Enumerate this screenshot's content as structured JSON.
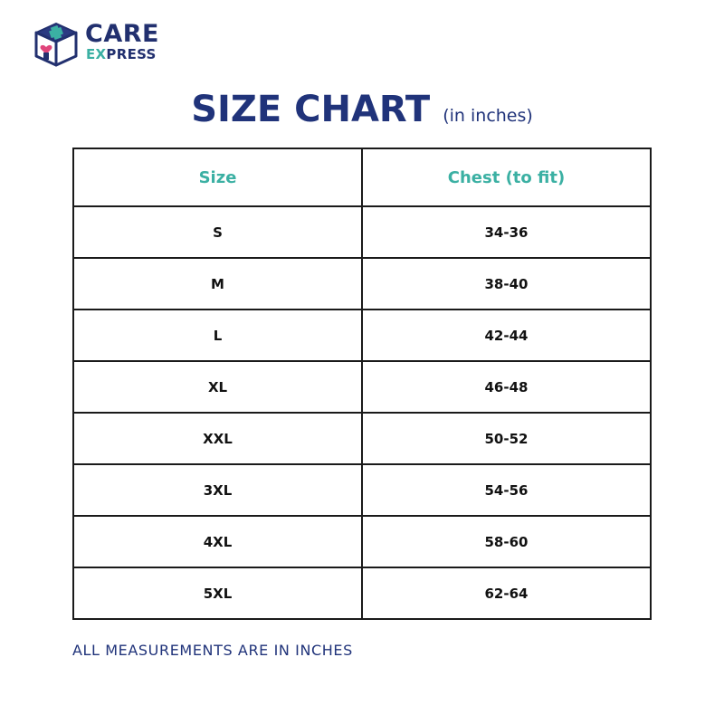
{
  "brand": {
    "name_top": "CARE",
    "name_bottom_accent": "EX",
    "name_bottom_rest": "PRESS",
    "logo_icon": "box-heart-icon",
    "colors": {
      "navy": "#22306f",
      "teal": "#3bb0a3"
    }
  },
  "header": {
    "title": "SIZE CHART",
    "subtitle": "(in inches)"
  },
  "table": {
    "columns": [
      "Size",
      "Chest (to fit)"
    ],
    "rows": [
      {
        "size": "S",
        "chest": "34-36"
      },
      {
        "size": "M",
        "chest": "38-40"
      },
      {
        "size": "L",
        "chest": "42-44"
      },
      {
        "size": "XL",
        "chest": "46-48"
      },
      {
        "size": "XXL",
        "chest": "50-52"
      },
      {
        "size": "3XL",
        "chest": "54-56"
      },
      {
        "size": "4XL",
        "chest": "58-60"
      },
      {
        "size": "5XL",
        "chest": "62-64"
      }
    ]
  },
  "footer": {
    "note": "ALL MEASUREMENTS ARE IN INCHES"
  }
}
